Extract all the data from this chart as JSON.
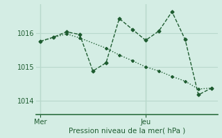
{
  "background_color": "#d4ede4",
  "grid_color": "#b8d8cc",
  "line_color": "#1e5c30",
  "x_ticks_labels": [
    "Mer",
    "Jeu"
  ],
  "x_ticks_pos": [
    0,
    8
  ],
  "ylabel": "Pression niveau de la mer( hPa )",
  "ylim": [
    1013.6,
    1016.85
  ],
  "yticks": [
    1014,
    1015,
    1016
  ],
  "series1_x": [
    0,
    1,
    2,
    3,
    4,
    5,
    6,
    7,
    8,
    9,
    10,
    11,
    12,
    13
  ],
  "series1_y": [
    1015.75,
    1015.87,
    1016.03,
    1015.95,
    1014.88,
    1015.12,
    1016.42,
    1016.1,
    1015.78,
    1016.05,
    1016.62,
    1015.8,
    1014.18,
    1014.38
  ],
  "series2_x": [
    0,
    2,
    3,
    5,
    6,
    7,
    8,
    9,
    10,
    11,
    12,
    13
  ],
  "series2_y": [
    1015.75,
    1015.97,
    1015.85,
    1015.55,
    1015.35,
    1015.18,
    1015.0,
    1014.88,
    1014.72,
    1014.58,
    1014.35,
    1014.38
  ],
  "vline_x": [
    0,
    8
  ]
}
